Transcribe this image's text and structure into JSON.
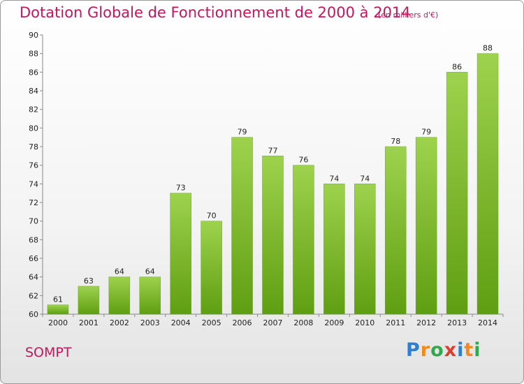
{
  "header": {
    "title": "Dotation Globale de Fonctionnement de 2000 à 2014",
    "unit": "(en milliers d'€)"
  },
  "footer": {
    "place": "SOMPT",
    "logo": "Proxiti"
  },
  "colors": {
    "title": "#c2185b",
    "bar_top": "#9ed24e",
    "bar_bottom": "#5f9e12"
  },
  "chart_data": {
    "type": "bar",
    "title": "Dotation Globale de Fonctionnement de 2000 à 2014",
    "subtitle": "(en milliers d'€)",
    "categories": [
      "2000",
      "2001",
      "2002",
      "2003",
      "2004",
      "2005",
      "2006",
      "2007",
      "2008",
      "2009",
      "2010",
      "2011",
      "2012",
      "2013",
      "2014"
    ],
    "values": [
      61,
      63,
      64,
      64,
      73,
      70,
      79,
      77,
      76,
      74,
      74,
      78,
      79,
      86,
      88
    ],
    "ylim": [
      60,
      90
    ],
    "yticks": [
      60,
      62,
      64,
      66,
      68,
      70,
      72,
      74,
      76,
      78,
      80,
      82,
      84,
      86,
      88,
      90
    ],
    "grid": false,
    "data_labels": true
  }
}
